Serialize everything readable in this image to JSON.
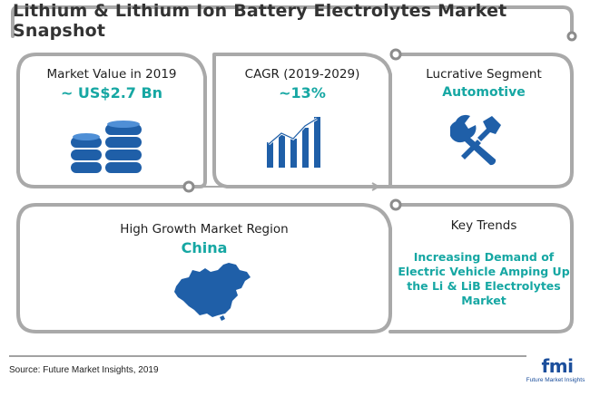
{
  "title": "Lithium & Lithium Ion Battery Electrolytes Market Snapshot",
  "market_value": {
    "label": "Market Value in 2019",
    "value": "~ US$2.7 Bn",
    "icon": "database-coins-icon"
  },
  "cagr": {
    "label": "CAGR (2019-2029)",
    "value": "~13%",
    "icon": "growth-bar-chart-icon"
  },
  "segment": {
    "label": "Lucrative Segment",
    "value": "Automotive",
    "icon": "wrench-icon"
  },
  "region": {
    "label": "High Growth Market Region",
    "value": "China",
    "icon": "china-map-icon"
  },
  "trends": {
    "label": "Key Trends",
    "lines": [
      "Increasing Demand of",
      "Electric Vehicle Amping Up",
      "the Li & LiB Electrolytes",
      "Market"
    ]
  },
  "source": "Source: Future Market Insights, 2019",
  "logo": {
    "mark": "fmi",
    "tagline": "Future Market Insights"
  },
  "colors": {
    "accent": "#16a7a3",
    "icon_blue": "#1f5fa8",
    "frame_gray": "#a6a6a6"
  }
}
